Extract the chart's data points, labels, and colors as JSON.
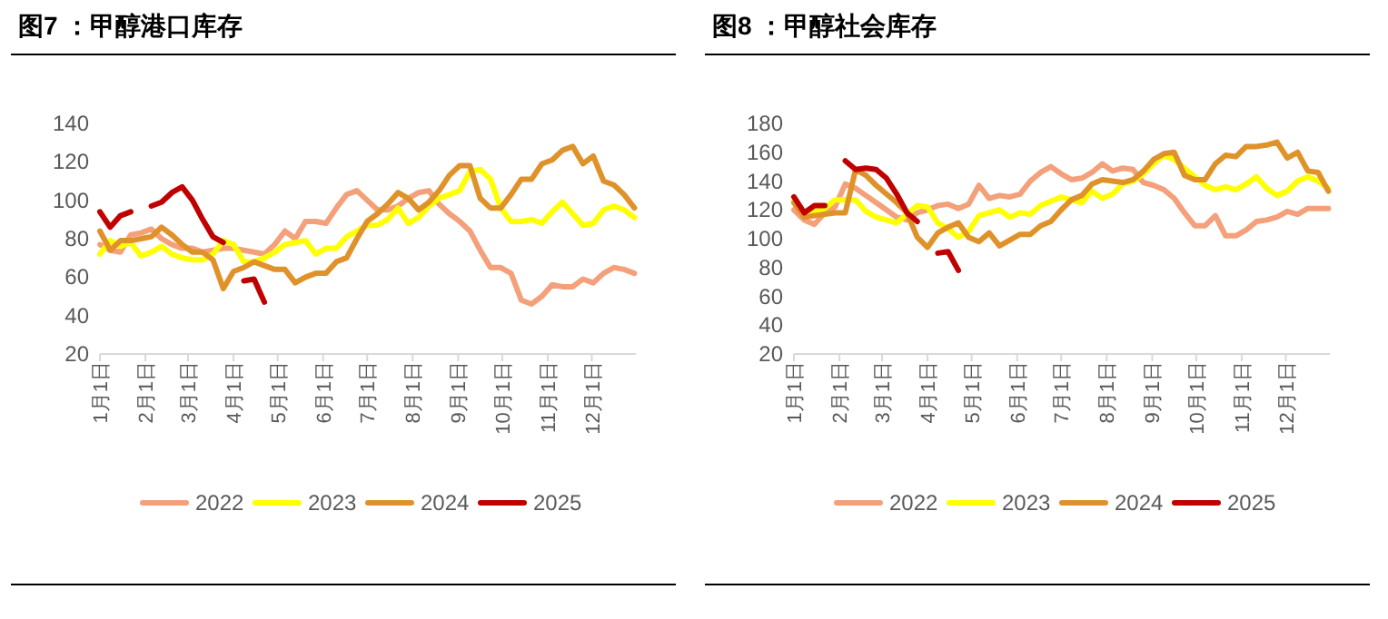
{
  "chart_data": [
    {
      "type": "line",
      "title": "图7 ：甲醇港口库存",
      "x": [
        "--01-01",
        "--01-08",
        "--01-15",
        "--01-22",
        "--01-29",
        "--02-05",
        "--02-12",
        "--02-19",
        "--02-26",
        "--03-04",
        "--03-11",
        "--03-18",
        "--03-25",
        "--04-01",
        "--04-08",
        "--04-15",
        "--04-22",
        "--04-29",
        "--05-06",
        "--05-13",
        "--05-20",
        "--05-27",
        "--06-03",
        "--06-10",
        "--06-17",
        "--06-24",
        "--07-01",
        "--07-08",
        "--07-15",
        "--07-22",
        "--07-29",
        "--08-05",
        "--08-12",
        "--08-19",
        "--08-26",
        "--09-02",
        "--09-09",
        "--09-16",
        "--09-23",
        "--09-30",
        "--10-07",
        "--10-14",
        "--10-21",
        "--10-28",
        "--11-04",
        "--11-11",
        "--11-18",
        "--11-25",
        "--12-02",
        "--12-09",
        "--12-16",
        "--12-23",
        "--12-30"
      ],
      "series": [
        {
          "name": "2022",
          "color": "#f4a07a",
          "values": [
            77,
            74,
            73,
            82,
            83,
            85,
            80,
            77,
            75,
            75,
            73,
            74,
            75,
            75,
            74,
            73,
            72,
            77,
            84,
            80,
            89,
            89,
            88,
            96,
            103,
            105,
            100,
            95,
            95,
            97,
            101,
            104,
            105,
            98,
            93,
            89,
            84,
            74,
            65,
            65,
            62,
            48,
            46,
            50,
            56,
            55,
            55,
            59,
            57,
            62,
            65,
            64,
            62
          ]
        },
        {
          "name": "2023",
          "color": "#ffff00",
          "values": [
            72,
            79,
            76,
            78,
            71,
            73,
            76,
            72,
            70,
            69,
            69,
            72,
            79,
            77,
            68,
            68,
            70,
            73,
            77,
            78,
            79,
            72,
            75,
            75,
            81,
            84,
            87,
            87,
            90,
            96,
            88,
            91,
            97,
            101,
            103,
            105,
            115,
            116,
            111,
            96,
            89,
            89,
            90,
            88,
            94,
            99,
            93,
            87,
            88,
            95,
            97,
            95,
            91
          ]
        },
        {
          "name": "2024",
          "color": "#e0922a",
          "values": [
            84,
            74,
            79,
            79,
            80,
            81,
            86,
            82,
            77,
            73,
            73,
            69,
            54,
            63,
            65,
            68,
            66,
            64,
            64,
            57,
            60,
            62,
            62,
            68,
            70,
            80,
            89,
            93,
            98,
            104,
            101,
            95,
            99,
            105,
            113,
            118,
            118,
            101,
            96,
            96,
            103,
            111,
            111,
            119,
            121,
            126,
            128,
            119,
            123,
            110,
            108,
            103,
            96
          ]
        },
        {
          "name": "2025",
          "color": "#c00000",
          "values": [
            94,
            86,
            92,
            94,
            null,
            97,
            99,
            104,
            107,
            100,
            90,
            81,
            78,
            null,
            58,
            59,
            47,
            null,
            null,
            null,
            null,
            null,
            null,
            null,
            null,
            null,
            null,
            null,
            null,
            null,
            null,
            null,
            null,
            null,
            null,
            null,
            null,
            null,
            null,
            null,
            null,
            null,
            null,
            null,
            null,
            null,
            null,
            null,
            null,
            null,
            null,
            null,
            null
          ]
        }
      ],
      "xlim": [
        "--01-01",
        "--12-31"
      ],
      "xticks": [
        {
          "value": "--01-01",
          "label": "1月1日"
        },
        {
          "value": "--02-01",
          "label": "2月1日"
        },
        {
          "value": "--03-01",
          "label": "3月1日"
        },
        {
          "value": "--04-01",
          "label": "4月1日"
        },
        {
          "value": "--05-01",
          "label": "5月1日"
        },
        {
          "value": "--06-01",
          "label": "6月1日"
        },
        {
          "value": "--07-01",
          "label": "7月1日"
        },
        {
          "value": "--08-01",
          "label": "8月1日"
        },
        {
          "value": "--09-01",
          "label": "9月1日"
        },
        {
          "value": "--10-01",
          "label": "10月1日"
        },
        {
          "value": "--11-01",
          "label": "11月1日"
        },
        {
          "value": "--12-01",
          "label": "12月1日"
        }
      ],
      "ylim": [
        20,
        140
      ],
      "yticks": [
        20,
        40,
        60,
        80,
        100,
        120,
        140
      ],
      "legend": "bottom"
    },
    {
      "type": "line",
      "title": "图8 ：甲醇社会库存",
      "x": [
        "--01-01",
        "--01-08",
        "--01-15",
        "--01-22",
        "--01-29",
        "--02-05",
        "--02-12",
        "--02-19",
        "--02-26",
        "--03-04",
        "--03-11",
        "--03-18",
        "--03-25",
        "--04-01",
        "--04-08",
        "--04-15",
        "--04-22",
        "--04-29",
        "--05-06",
        "--05-13",
        "--05-20",
        "--05-27",
        "--06-03",
        "--06-10",
        "--06-17",
        "--06-24",
        "--07-01",
        "--07-08",
        "--07-15",
        "--07-22",
        "--07-29",
        "--08-05",
        "--08-12",
        "--08-19",
        "--08-26",
        "--09-02",
        "--09-09",
        "--09-16",
        "--09-23",
        "--09-30",
        "--10-07",
        "--10-14",
        "--10-21",
        "--10-28",
        "--11-04",
        "--11-11",
        "--11-18",
        "--11-25",
        "--12-02",
        "--12-09",
        "--12-16",
        "--12-23",
        "--12-30"
      ],
      "series": [
        {
          "name": "2022",
          "color": "#f4a07a",
          "values": [
            120,
            113,
            110,
            118,
            122,
            138,
            135,
            130,
            125,
            120,
            115,
            113,
            118,
            120,
            123,
            124,
            121,
            124,
            137,
            128,
            130,
            129,
            131,
            140,
            146,
            150,
            145,
            141,
            142,
            146,
            152,
            147,
            149,
            148,
            139,
            137,
            134,
            128,
            118,
            109,
            109,
            116,
            102,
            102,
            106,
            112,
            113,
            115,
            119,
            117,
            121,
            121,
            121
          ]
        },
        {
          "name": "2023",
          "color": "#ffff00",
          "values": [
            126,
            117,
            119,
            121,
            127,
            127,
            127,
            119,
            115,
            113,
            111,
            117,
            123,
            122,
            111,
            107,
            101,
            105,
            116,
            118,
            120,
            115,
            118,
            117,
            123,
            126,
            129,
            127,
            125,
            133,
            128,
            131,
            138,
            140,
            145,
            152,
            158,
            155,
            149,
            143,
            137,
            134,
            136,
            134,
            138,
            143,
            135,
            130,
            133,
            140,
            143,
            140,
            135
          ]
        },
        {
          "name": "2024",
          "color": "#e0922a",
          "values": [
            125,
            115,
            116,
            117,
            118,
            118,
            148,
            144,
            137,
            131,
            125,
            118,
            101,
            94,
            104,
            108,
            111,
            101,
            98,
            104,
            95,
            99,
            103,
            103,
            109,
            112,
            120,
            127,
            130,
            138,
            141,
            140,
            139,
            141,
            147,
            155,
            159,
            160,
            144,
            141,
            141,
            152,
            158,
            157,
            164,
            164,
            165,
            167,
            156,
            160,
            147,
            146,
            133
          ]
        },
        {
          "name": "2025",
          "color": "#c00000",
          "values": [
            129,
            118,
            123,
            123,
            null,
            154,
            148,
            149,
            148,
            142,
            131,
            118,
            112,
            null,
            90,
            91,
            78,
            null,
            null,
            null,
            null,
            null,
            null,
            null,
            null,
            null,
            null,
            null,
            null,
            null,
            null,
            null,
            null,
            null,
            null,
            null,
            null,
            null,
            null,
            null,
            null,
            null,
            null,
            null,
            null,
            null,
            null,
            null,
            null,
            null,
            null,
            null,
            null
          ]
        }
      ],
      "xlim": [
        "--01-01",
        "--12-31"
      ],
      "xticks": [
        {
          "value": "--01-01",
          "label": "1月1日"
        },
        {
          "value": "--02-01",
          "label": "2月1日"
        },
        {
          "value": "--03-01",
          "label": "3月1日"
        },
        {
          "value": "--04-01",
          "label": "4月1日"
        },
        {
          "value": "--05-01",
          "label": "5月1日"
        },
        {
          "value": "--06-01",
          "label": "6月1日"
        },
        {
          "value": "--07-01",
          "label": "7月1日"
        },
        {
          "value": "--08-01",
          "label": "8月1日"
        },
        {
          "value": "--09-01",
          "label": "9月1日"
        },
        {
          "value": "--10-01",
          "label": "10月1日"
        },
        {
          "value": "--11-01",
          "label": "11月1日"
        },
        {
          "value": "--12-01",
          "label": "12月1日"
        }
      ],
      "ylim": [
        20,
        180
      ],
      "yticks": [
        20,
        40,
        60,
        80,
        100,
        120,
        140,
        160,
        180
      ],
      "legend": "bottom"
    }
  ]
}
